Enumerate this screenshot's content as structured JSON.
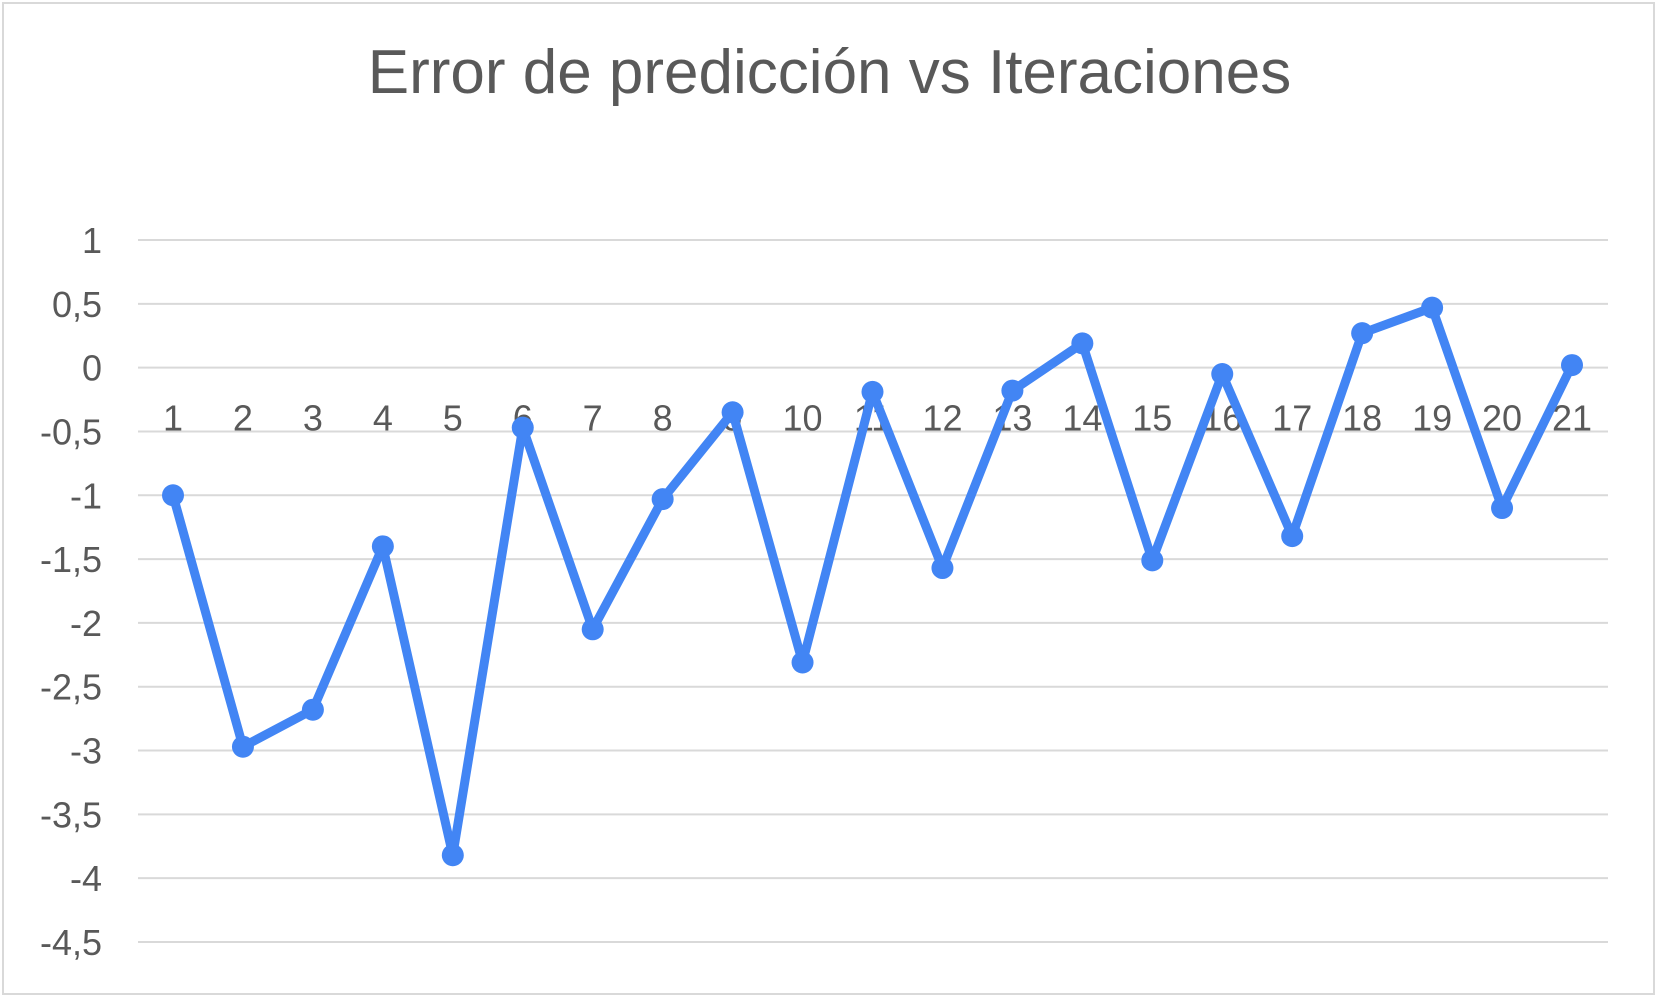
{
  "chart_data": {
    "type": "line",
    "title": "Error de predicción vs Iteraciones",
    "xlabel": "",
    "ylabel": "",
    "categories": [
      "1",
      "2",
      "3",
      "4",
      "5",
      "6",
      "7",
      "8",
      "9",
      "10",
      "11",
      "12",
      "13",
      "14",
      "15",
      "16",
      "17",
      "18",
      "19",
      "20",
      "21"
    ],
    "series": [
      {
        "values": [
          -1.0,
          -2.97,
          -2.68,
          -1.4,
          -3.82,
          -0.47,
          -2.05,
          -1.03,
          -0.35,
          -2.31,
          -0.19,
          -1.57,
          -0.18,
          0.19,
          -1.51,
          -0.05,
          -1.32,
          0.27,
          0.47,
          -1.1,
          0.02
        ]
      }
    ],
    "ylim": [
      -4.5,
      1
    ],
    "yticks": [
      "1",
      "0,5",
      "0",
      "-0,5",
      "-1",
      "-1,5",
      "-2",
      "-2,5",
      "-3",
      "-3,5",
      "-4",
      "-4,5"
    ],
    "ytick_values": [
      1,
      0.5,
      0,
      -0.5,
      -1,
      -1.5,
      -2,
      -2.5,
      -3,
      -3.5,
      -4,
      -4.5
    ],
    "grid": true,
    "legend": "none",
    "colors": {
      "line": "#4285f4",
      "grid": "#d9d9d9",
      "text": "#595959",
      "border": "#d9d9d9"
    }
  }
}
